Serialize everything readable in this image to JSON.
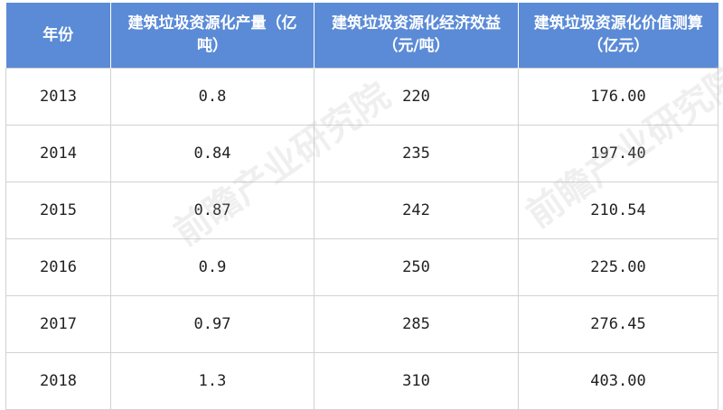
{
  "watermark": "前瞻产业研究院",
  "chart_data": {
    "type": "table",
    "columns": [
      "年份",
      "建筑垃圾资源化产量（亿吨）",
      "建筑垃圾资源化经济效益（元/吨）",
      "建筑垃圾资源化价值测算（亿元）"
    ],
    "rows": [
      [
        "2013",
        "0.8",
        "220",
        "176.00"
      ],
      [
        "2014",
        "0.84",
        "235",
        "197.40"
      ],
      [
        "2015",
        "0.87",
        "242",
        "210.54"
      ],
      [
        "2016",
        "0.9",
        "250",
        "225.00"
      ],
      [
        "2017",
        "0.97",
        "285",
        "276.45"
      ],
      [
        "2018",
        "1.3",
        "310",
        "403.00"
      ]
    ],
    "header_color": "#5b8bd6"
  }
}
